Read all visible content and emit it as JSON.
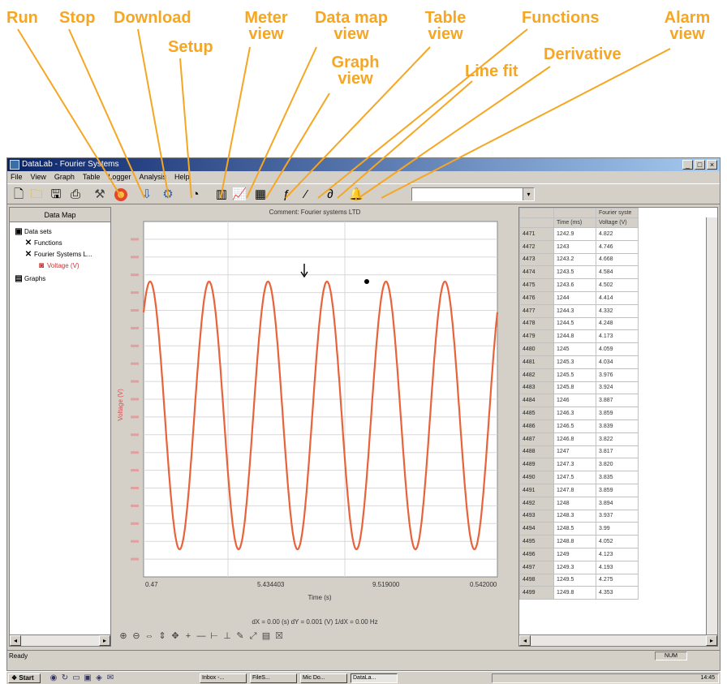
{
  "callouts": {
    "run": "Run",
    "stop": "Stop",
    "download": "Download",
    "setup": "Setup",
    "meter_view": "Meter view",
    "data_map_view": "Data map view",
    "graph_view": "Graph view",
    "table_view": "Table view",
    "functions": "Functions",
    "line_fit": "Line fit",
    "derivative": "Derivative",
    "alarm_view": "Alarm view"
  },
  "accent_color": "#f5a623",
  "window": {
    "title": "DataLab - Fourier Systems",
    "menu": [
      "File",
      "View",
      "Graph",
      "Table",
      "Logger",
      "Analysis",
      "Help"
    ]
  },
  "toolbar": {
    "icons": [
      "new-file-icon",
      "open-folder-icon",
      "save-icon",
      "print-icon",
      "run-icon",
      "stop-icon",
      "download-icon",
      "setup-icon",
      "meter-view-icon",
      "data-map-view-icon",
      "graph-view-icon",
      "table-view-icon",
      "functions-icon",
      "line-fit-icon",
      "derivative-icon",
      "alarm-view-icon"
    ]
  },
  "data_map": {
    "header": "Data Map",
    "tree": [
      "Data sets",
      "Functions",
      "Fourier Systems L...",
      "Voltage (V)",
      "Graphs"
    ]
  },
  "graph": {
    "header": "Comment: Fourier systems LTD",
    "x_ticks": [
      "0.47",
      "5.434403",
      "9.519000",
      "0.542000"
    ],
    "xlabel": "Time (s)",
    "ylabel": "Voltage (V)",
    "footer": "dX = 0.00 (s)  dY = 0.001 (V)  1/dX = 0.00 Hz",
    "curve_color": "#e8623a",
    "cycles": 6
  },
  "chart_data": {
    "type": "line",
    "title": "",
    "xlabel": "Time (s)",
    "ylabel": "Voltage (V)",
    "series": [
      {
        "name": "Voltage (V)",
        "color": "#e8623a",
        "x": [
          0.47,
          0.5,
          0.53,
          0.56,
          0.59
        ],
        "y": [
          0.3,
          4.8,
          0.3,
          4.8,
          0.3
        ]
      }
    ],
    "grid": true
  },
  "table": {
    "series_header": "Fourier syste",
    "col_time": "Time (ms)",
    "col_voltage": "Voltage (V)",
    "rows": [
      [
        "4471",
        "1242.9",
        "4.822"
      ],
      [
        "4472",
        "1243",
        "4.746"
      ],
      [
        "4473",
        "1243.2",
        "4.668"
      ],
      [
        "4474",
        "1243.5",
        "4.584"
      ],
      [
        "4475",
        "1243.6",
        "4.502"
      ],
      [
        "4476",
        "1244",
        "4.414"
      ],
      [
        "4477",
        "1244.3",
        "4.332"
      ],
      [
        "4478",
        "1244.5",
        "4.248"
      ],
      [
        "4479",
        "1244.8",
        "4.173"
      ],
      [
        "4480",
        "1245",
        "4.059"
      ],
      [
        "4481",
        "1245.3",
        "4.034"
      ],
      [
        "4482",
        "1245.5",
        "3.976"
      ],
      [
        "4483",
        "1245.8",
        "3.924"
      ],
      [
        "4484",
        "1246",
        "3.887"
      ],
      [
        "4485",
        "1246.3",
        "3.859"
      ],
      [
        "4486",
        "1246.5",
        "3.839"
      ],
      [
        "4487",
        "1246.8",
        "3.822"
      ],
      [
        "4488",
        "1247",
        "3.817"
      ],
      [
        "4489",
        "1247.3",
        "3.820"
      ],
      [
        "4490",
        "1247.5",
        "3.835"
      ],
      [
        "4491",
        "1247.8",
        "3.859"
      ],
      [
        "4492",
        "1248",
        "3.894"
      ],
      [
        "4493",
        "1248.3",
        "3.937"
      ],
      [
        "4494",
        "1248.5",
        "3.99"
      ],
      [
        "4495",
        "1248.8",
        "4.052"
      ],
      [
        "4496",
        "1249",
        "4.123"
      ],
      [
        "4497",
        "1249.3",
        "4.193"
      ],
      [
        "4498",
        "1249.5",
        "4.275"
      ],
      [
        "4499",
        "1249.8",
        "4.353"
      ]
    ]
  },
  "status": {
    "text": "Ready",
    "mode": "NUM"
  },
  "taskbar": {
    "start": "Start",
    "tasks": [
      "Inbox -...",
      "FileS...",
      "Mic Do...",
      "DataLa..."
    ],
    "clock": "14:45"
  }
}
